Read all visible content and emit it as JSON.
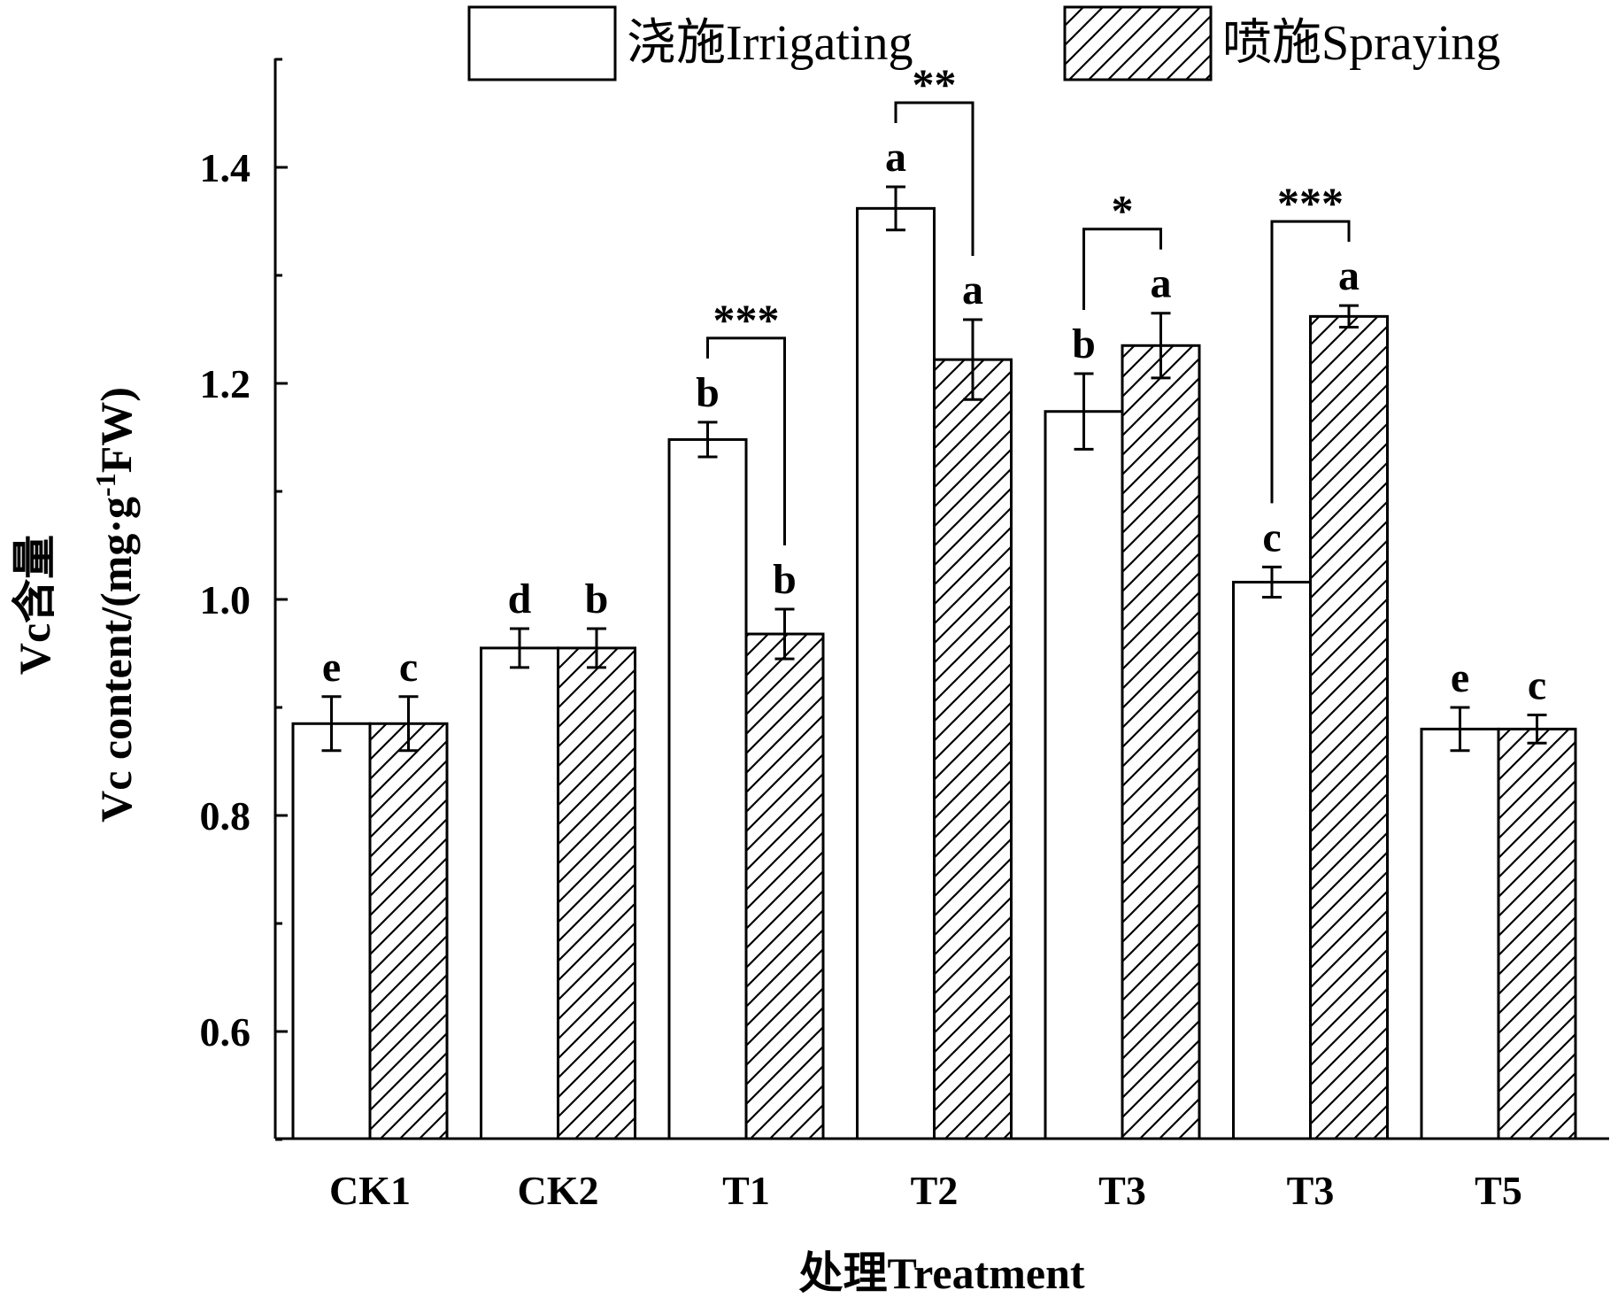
{
  "chart_data": {
    "type": "bar",
    "ylabel_line1": "Vc含量",
    "ylabel_line2_main": "Vc content/(mg·g",
    "ylabel_line2_sup": "-1",
    "ylabel_line2_end": "FW)",
    "xlabel": "处理Treatment",
    "ylim": [
      0.5,
      1.5
    ],
    "yticks_major": [
      0.6,
      0.8,
      1.0,
      1.2,
      1.4
    ],
    "ytick_labels": [
      "0.6",
      "0.8",
      "1.0",
      "1.2",
      "1.4"
    ],
    "yticks_minor": [
      0.5,
      0.7,
      0.9,
      1.1,
      1.3,
      1.5
    ],
    "categories": [
      "CK1",
      "CK2",
      "T1",
      "T2",
      "T3",
      "T3",
      "T5"
    ],
    "series": [
      {
        "name": "浇施Irrigating",
        "pattern": "plain",
        "values": [
          0.885,
          0.955,
          1.148,
          1.362,
          1.174,
          1.016,
          0.88
        ],
        "errors": [
          0.025,
          0.018,
          0.016,
          0.02,
          0.035,
          0.014,
          0.02
        ],
        "letters": [
          "e",
          "d",
          "b",
          "a",
          "b",
          "c",
          "e"
        ]
      },
      {
        "name": "喷施Spraying",
        "pattern": "hatched",
        "values": [
          0.885,
          0.955,
          0.968,
          1.222,
          1.235,
          1.262,
          0.88
        ],
        "errors": [
          0.025,
          0.018,
          0.023,
          0.037,
          0.03,
          0.01,
          0.013
        ],
        "letters": [
          "c",
          "b",
          "b",
          "a",
          "a",
          "a",
          "c"
        ]
      }
    ],
    "significance": [
      {
        "category_index": 2,
        "label": "***"
      },
      {
        "category_index": 3,
        "label": "**"
      },
      {
        "category_index": 4,
        "label": "*"
      },
      {
        "category_index": 5,
        "label": "***"
      }
    ],
    "legend_position": "top",
    "grid": false,
    "colors": {
      "bar_fill": "#ffffff",
      "stroke": "#000000",
      "hatch": "#000000"
    }
  }
}
